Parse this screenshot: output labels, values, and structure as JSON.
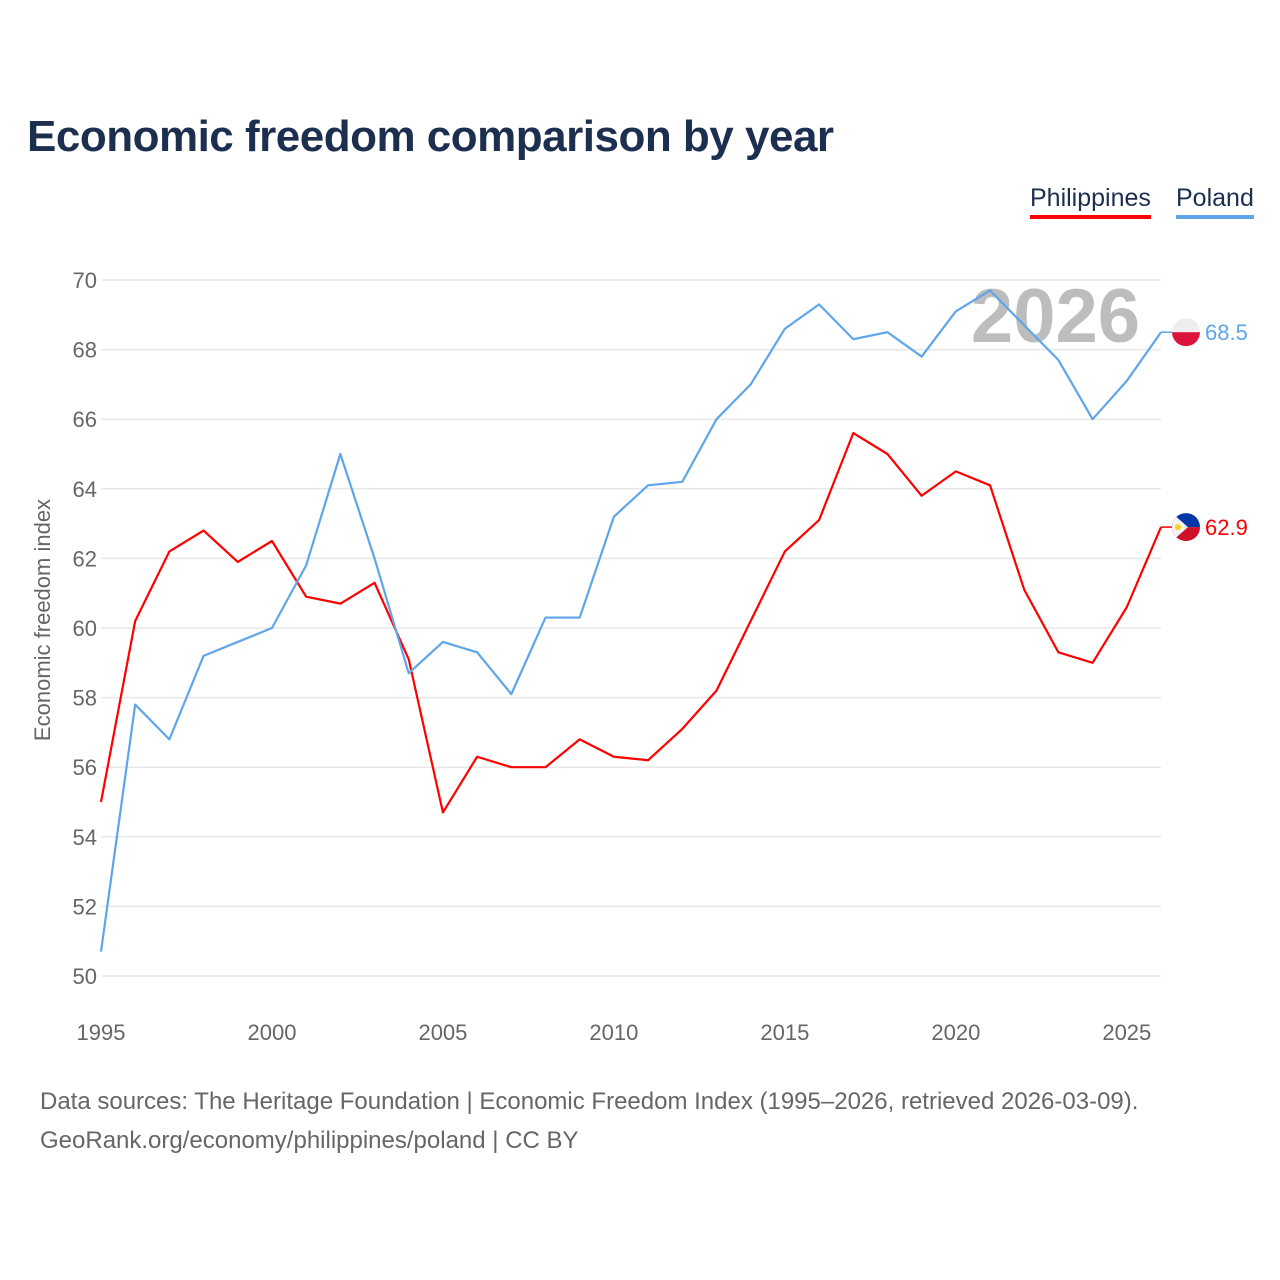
{
  "title": "Economic freedom comparison by year",
  "footer": {
    "line1": "Data sources: The Heritage Foundation | Economic Freedom Index (1995–2026, retrieved 2026-03-09).",
    "line2": "GeoRank.org/economy/philippines/poland | CC BY"
  },
  "chart_data": {
    "type": "line",
    "title": "Economic freedom comparison by year",
    "xlabel": "",
    "ylabel": "Economic freedom index",
    "year_watermark": "2026",
    "xlim": [
      1995,
      2026
    ],
    "ylim": [
      50,
      70
    ],
    "x_ticks": [
      "1995",
      "2000",
      "2005",
      "2010",
      "2015",
      "2020",
      "2025"
    ],
    "y_ticks": [
      "50",
      "52",
      "54",
      "56",
      "58",
      "60",
      "62",
      "64",
      "66",
      "68",
      "70"
    ],
    "grid": true,
    "legend_position": "top-right",
    "x": [
      1995,
      1996,
      1997,
      1998,
      1999,
      2000,
      2001,
      2002,
      2003,
      2004,
      2005,
      2006,
      2007,
      2008,
      2009,
      2010,
      2011,
      2012,
      2013,
      2014,
      2015,
      2016,
      2017,
      2018,
      2019,
      2020,
      2021,
      2022,
      2023,
      2024,
      2025,
      2026
    ],
    "series": [
      {
        "name": "Philippines",
        "color": "#ff0000",
        "end_label": "62.9",
        "flag": "philippines-flag",
        "values": [
          55.0,
          60.2,
          62.2,
          62.8,
          61.9,
          62.5,
          60.9,
          60.7,
          61.3,
          59.1,
          54.7,
          56.3,
          56.0,
          56.0,
          56.8,
          56.3,
          56.2,
          57.1,
          58.2,
          60.2,
          62.2,
          63.1,
          65.6,
          65.0,
          63.8,
          64.5,
          64.1,
          61.1,
          59.3,
          59.0,
          60.6,
          62.9
        ]
      },
      {
        "name": "Poland",
        "color": "#5ea5ea",
        "end_label": "68.5",
        "flag": "poland-flag",
        "values": [
          50.7,
          57.8,
          56.8,
          59.2,
          59.6,
          60.0,
          61.8,
          65.0,
          62.0,
          58.7,
          59.6,
          59.3,
          58.1,
          60.3,
          60.3,
          63.2,
          64.1,
          64.2,
          66.0,
          67.0,
          68.6,
          69.3,
          68.3,
          68.5,
          67.8,
          69.1,
          69.7,
          68.7,
          67.7,
          66.0,
          67.1,
          68.5
        ]
      }
    ]
  }
}
